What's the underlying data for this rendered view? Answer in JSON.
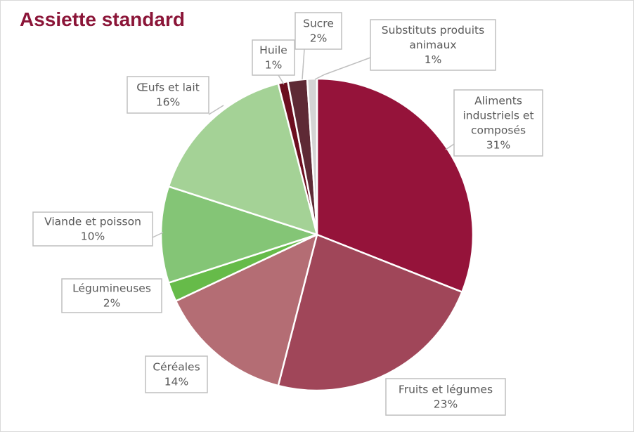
{
  "chart_data": {
    "type": "pie",
    "title": "Assiette standard",
    "title_color": "#8b1538",
    "start_angle_deg": 0,
    "direction": "clockwise",
    "slices": [
      {
        "label": [
          "Aliments",
          "industriels et",
          "composés"
        ],
        "value": 31,
        "value_label": "31%",
        "color": "#95133a"
      },
      {
        "label": [
          "Fruits et légumes"
        ],
        "value": 23,
        "value_label": "23%",
        "color": "#a04659"
      },
      {
        "label": [
          "Céréales"
        ],
        "value": 14,
        "value_label": "14%",
        "color": "#b46d74"
      },
      {
        "label": [
          "Légumineuses"
        ],
        "value": 2,
        "value_label": "2%",
        "color": "#66bb49"
      },
      {
        "label": [
          "Viande et poisson"
        ],
        "value": 10,
        "value_label": "10%",
        "color": "#84c576"
      },
      {
        "label": [
          "Œufs et lait"
        ],
        "value": 16,
        "value_label": "16%",
        "color": "#a4d296"
      },
      {
        "label": [
          "Huile"
        ],
        "value": 1,
        "value_label": "1%",
        "color": "#6c0e1f"
      },
      {
        "label": [
          "Sucre"
        ],
        "value": 2,
        "value_label": "2%",
        "color": "#5e2a35"
      },
      {
        "label": [
          "Substituts produits",
          "animaux"
        ],
        "value": 1,
        "value_label": "1%",
        "color": "#d4d4d4"
      }
    ]
  }
}
